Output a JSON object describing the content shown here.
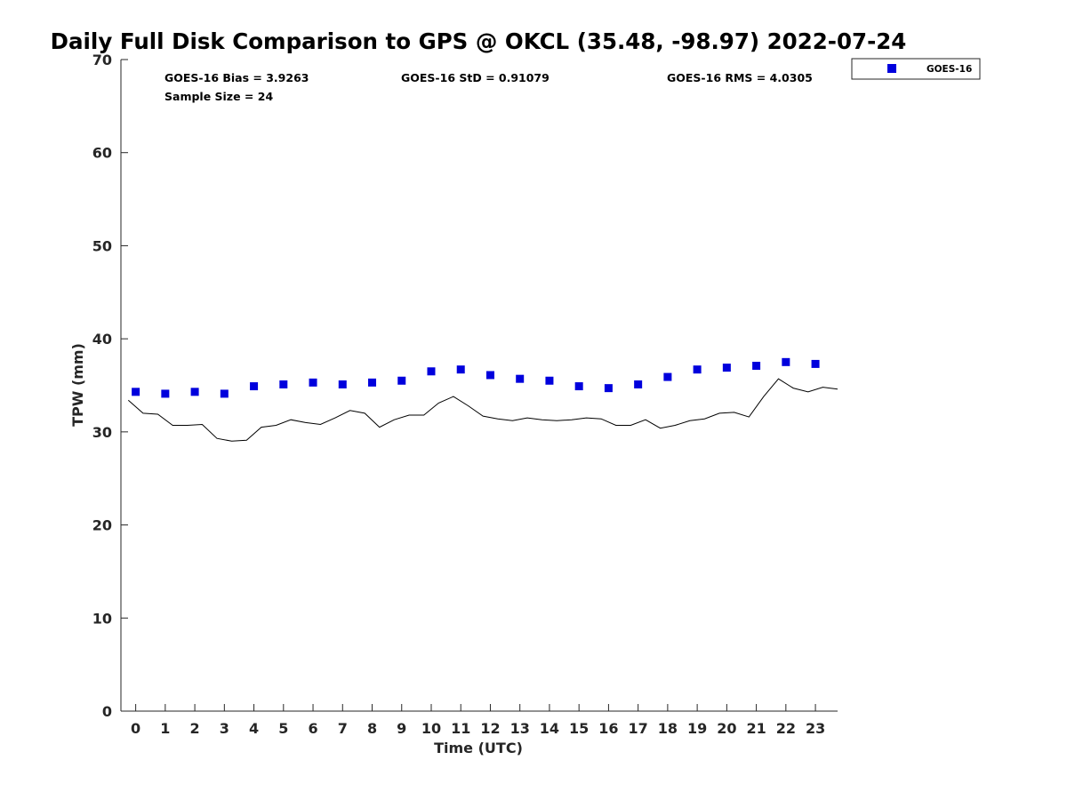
{
  "chart_data": {
    "type": "scatter",
    "title": "Daily Full Disk Comparison to GPS @ OKCL (35.48, -98.97) 2022-07-24",
    "xlabel": "Time (UTC)",
    "ylabel": "TPW (mm)",
    "xlim": [
      -0.5,
      23.75
    ],
    "ylim": [
      0,
      70
    ],
    "xticks": [
      0,
      1,
      2,
      3,
      4,
      5,
      6,
      7,
      8,
      9,
      10,
      11,
      12,
      13,
      14,
      15,
      16,
      17,
      18,
      19,
      20,
      21,
      22,
      23
    ],
    "yticks": [
      0,
      10,
      20,
      30,
      40,
      50,
      60,
      70
    ],
    "grid": false,
    "legend_placement": "outside-top-right",
    "stats": {
      "bias": "GOES-16 Bias = 3.9263",
      "std": "GOES-16 StD = 0.91079",
      "rms": "GOES-16 RMS = 4.0305",
      "sample": "Sample Size = 24"
    },
    "series": [
      {
        "name": "GOES-16",
        "kind": "markers",
        "color": "#0000dd",
        "x": [
          0,
          1,
          2,
          3,
          4,
          5,
          6,
          7,
          8,
          9,
          10,
          11,
          12,
          13,
          14,
          15,
          16,
          17,
          18,
          19,
          20,
          21,
          22,
          23
        ],
        "values": [
          34.3,
          34.1,
          34.3,
          34.1,
          34.9,
          35.1,
          35.3,
          35.1,
          35.3,
          35.5,
          36.5,
          36.7,
          36.1,
          35.7,
          35.5,
          34.9,
          34.7,
          35.1,
          35.9,
          36.7,
          36.9,
          37.1,
          37.5,
          37.3
        ]
      },
      {
        "kind": "line",
        "color": "#000000",
        "x": [
          -0.25,
          0.25,
          0.75,
          1.25,
          1.75,
          2.25,
          2.75,
          3.25,
          3.75,
          4.25,
          4.75,
          5.25,
          5.75,
          6.25,
          6.75,
          7.25,
          7.75,
          8.25,
          8.75,
          9.25,
          9.75,
          10.25,
          10.75,
          11.25,
          11.75,
          12.25,
          12.75,
          13.25,
          13.75,
          14.25,
          14.75,
          15.25,
          15.75,
          16.25,
          16.75,
          17.25,
          17.75,
          18.25,
          18.75,
          19.25,
          19.75,
          20.25,
          20.75,
          21.25,
          21.75,
          22.25,
          22.75,
          23.25,
          23.75
        ],
        "values": [
          33.4,
          32.0,
          31.9,
          30.7,
          30.7,
          30.8,
          29.3,
          29.0,
          29.1,
          30.5,
          30.7,
          31.3,
          31.0,
          30.8,
          31.5,
          32.3,
          32.0,
          30.5,
          31.3,
          31.8,
          31.8,
          33.1,
          33.8,
          32.8,
          31.7,
          31.4,
          31.2,
          31.5,
          31.3,
          31.2,
          31.3,
          31.5,
          31.4,
          30.7,
          30.7,
          31.3,
          30.4,
          30.7,
          31.2,
          31.4,
          32.0,
          32.1,
          31.6,
          33.8,
          35.7,
          34.7,
          34.3,
          34.8,
          34.6
        ]
      }
    ]
  }
}
